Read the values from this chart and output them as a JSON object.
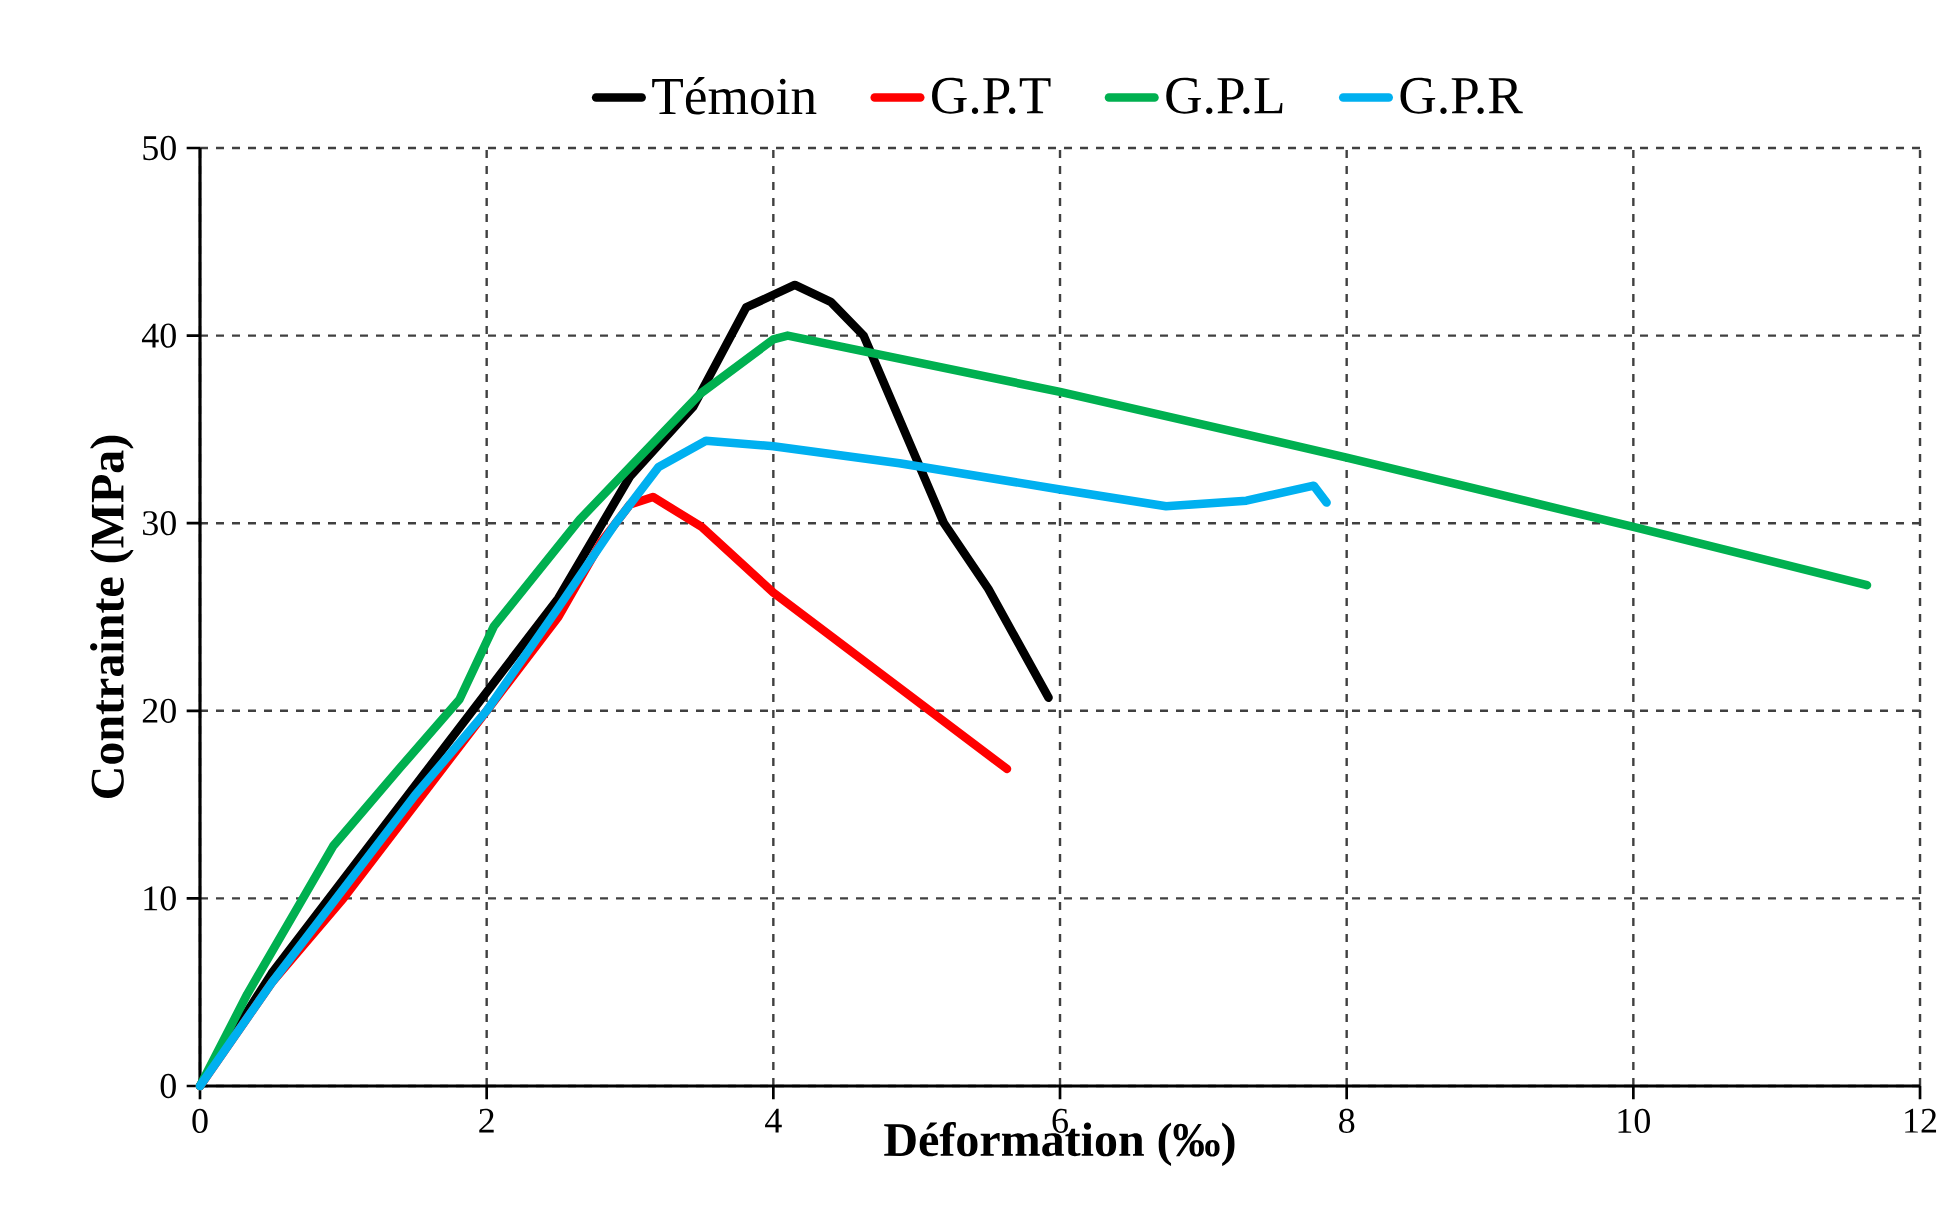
{
  "chart_data": {
    "type": "line",
    "xlabel": "Déformation (‰)",
    "ylabel": "Contrainte (MPa)",
    "xlim": [
      0,
      12
    ],
    "ylim": [
      0,
      50
    ],
    "xticks": [
      0,
      2,
      4,
      6,
      8,
      10,
      12
    ],
    "yticks": [
      0,
      10,
      20,
      30,
      40,
      50
    ],
    "grid": true,
    "legend": "top",
    "line_style": "solid",
    "marker": "none",
    "series": [
      {
        "name": "Témoin",
        "color": "#000000",
        "x": [
          0,
          0.5,
          1,
          1.5,
          2,
          2.5,
          3,
          3.44,
          3.81,
          4.15,
          4.4,
          4.63,
          5.19,
          5.5,
          5.92
        ],
        "values": [
          0,
          6,
          11,
          16,
          21,
          26,
          32.5,
          36.2,
          41.5,
          42.7,
          41.8,
          40,
          30,
          26.5,
          20.7
        ]
      },
      {
        "name": "G.P.T",
        "color": "#ff0000",
        "x": [
          0,
          0.5,
          1,
          1.5,
          2,
          2.5,
          2.8,
          3.0,
          3.16,
          3.5,
          4.0,
          5.63
        ],
        "values": [
          0,
          5.5,
          10,
          15,
          20,
          25,
          29,
          31,
          31.4,
          29.8,
          26.3,
          16.9
        ]
      },
      {
        "name": "G.P.L",
        "color": "#00b050",
        "x": [
          0,
          0.33,
          0.74,
          0.93,
          1.4,
          1.81,
          2.05,
          2.65,
          3.49,
          4.0,
          4.1,
          6,
          8,
          10,
          11.63
        ],
        "values": [
          0,
          4.9,
          10.3,
          12.8,
          17,
          20.6,
          24.5,
          30.2,
          36.9,
          39.8,
          40,
          37,
          33.5,
          29.8,
          26.7
        ]
      },
      {
        "name": "G.P.R",
        "color": "#00b0f0",
        "x": [
          0,
          0.5,
          1,
          1.5,
          2,
          2.5,
          2.9,
          3.2,
          3.53,
          4.0,
          4.88,
          6.0,
          6.74,
          7.3,
          7.77,
          7.86
        ],
        "values": [
          0,
          5.5,
          10.5,
          15.5,
          20,
          25.5,
          30,
          33,
          34.4,
          34.1,
          33.2,
          31.8,
          30.9,
          31.2,
          32.0,
          31.1
        ]
      }
    ]
  }
}
